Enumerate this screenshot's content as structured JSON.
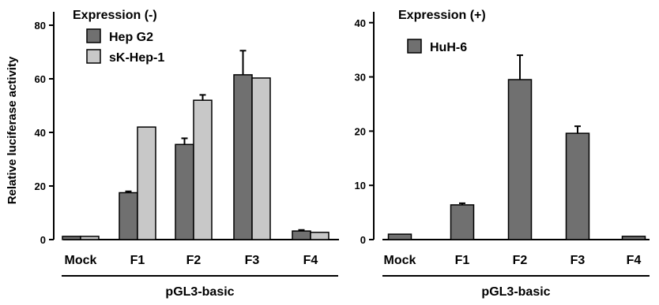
{
  "chart_data": [
    {
      "type": "bar",
      "legend_title": "Expression (-)",
      "ylabel": "Relative luciferase activity",
      "xlabel": "pGL3-basic",
      "ylim": [
        0,
        85
      ],
      "yticks": [
        0,
        20,
        40,
        60,
        80
      ],
      "categories": [
        "Mock",
        "F1",
        "F2",
        "F3",
        "F4"
      ],
      "series": [
        {
          "name": "Hep G2",
          "color": "#707070",
          "values": [
            1.2,
            17.5,
            35.5,
            61.5,
            3.2
          ],
          "errors": [
            0,
            0.5,
            2.3,
            9.0,
            0.4
          ]
        },
        {
          "name": "sK-Hep-1",
          "color": "#c8c8c8",
          "values": [
            1.2,
            42,
            52,
            60.3,
            2.7
          ],
          "errors": [
            0,
            0,
            2.0,
            0,
            0
          ]
        }
      ]
    },
    {
      "type": "bar",
      "legend_title": "Expression (+)",
      "ylabel": "",
      "xlabel": "pGL3-basic",
      "ylim": [
        0,
        42
      ],
      "yticks": [
        0,
        10,
        20,
        30,
        40
      ],
      "categories": [
        "Mock",
        "F1",
        "F2",
        "F3",
        "F4"
      ],
      "series": [
        {
          "name": "HuH-6",
          "color": "#707070",
          "values": [
            1.0,
            6.4,
            29.5,
            19.6,
            0.6
          ],
          "errors": [
            0,
            0.3,
            4.5,
            1.3,
            0
          ]
        }
      ]
    }
  ]
}
